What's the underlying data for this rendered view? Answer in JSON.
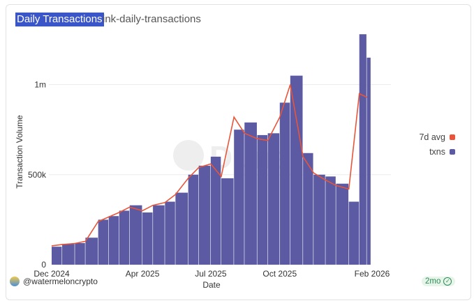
{
  "header": {
    "title": "Daily Transactions",
    "subtitle": "ink-daily-transactions"
  },
  "footer": {
    "author": "@watermeloncrypto",
    "age": "2mo"
  },
  "colors": {
    "txns": "#5b5aa3",
    "avg": "#e8553a",
    "title_bg": "#3a55c8"
  },
  "chart_data": {
    "type": "bar",
    "title": "Daily Transactions",
    "xlabel": "Date",
    "ylabel": "Transaction Volume",
    "ylim": [
      0,
      1300000
    ],
    "yticks": [
      {
        "value": 0,
        "label": "0"
      },
      {
        "value": 500000,
        "label": "500k"
      },
      {
        "value": 1000000,
        "label": "1m"
      }
    ],
    "xticks": [
      {
        "date": "2024-12-01",
        "label": "Dec 2024"
      },
      {
        "date": "2025-04-01",
        "label": "Apr 2025"
      },
      {
        "date": "2025-07-01",
        "label": "Jul 2025"
      },
      {
        "date": "2025-10-01",
        "label": "Oct 2025"
      },
      {
        "date": "2026-02-01",
        "label": "Feb 2026"
      }
    ],
    "x_range": [
      "2024-12-01",
      "2026-02-01"
    ],
    "legend_position": "right",
    "series": [
      {
        "name": "txns",
        "kind": "bar",
        "points": [
          [
            "2024-12-01",
            100000
          ],
          [
            "2024-12-15",
            115000
          ],
          [
            "2025-01-01",
            120000
          ],
          [
            "2025-01-15",
            150000
          ],
          [
            "2025-02-01",
            250000
          ],
          [
            "2025-02-15",
            270000
          ],
          [
            "2025-03-01",
            300000
          ],
          [
            "2025-03-15",
            330000
          ],
          [
            "2025-04-01",
            290000
          ],
          [
            "2025-04-15",
            330000
          ],
          [
            "2025-05-01",
            350000
          ],
          [
            "2025-05-15",
            400000
          ],
          [
            "2025-06-01",
            500000
          ],
          [
            "2025-06-15",
            550000
          ],
          [
            "2025-07-01",
            600000
          ],
          [
            "2025-07-15",
            480000
          ],
          [
            "2025-08-01",
            750000
          ],
          [
            "2025-08-15",
            790000
          ],
          [
            "2025-09-01",
            720000
          ],
          [
            "2025-09-15",
            730000
          ],
          [
            "2025-10-01",
            900000
          ],
          [
            "2025-10-15",
            1050000
          ],
          [
            "2025-11-01",
            620000
          ],
          [
            "2025-11-15",
            500000
          ],
          [
            "2025-12-01",
            490000
          ],
          [
            "2025-12-15",
            450000
          ],
          [
            "2026-01-01",
            350000
          ],
          [
            "2026-01-15",
            1280000
          ],
          [
            "2026-01-25",
            1150000
          ]
        ]
      },
      {
        "name": "7d avg",
        "kind": "line",
        "points": [
          [
            "2024-12-01",
            105000
          ],
          [
            "2024-12-15",
            112000
          ],
          [
            "2025-01-01",
            118000
          ],
          [
            "2025-01-15",
            130000
          ],
          [
            "2025-02-01",
            240000
          ],
          [
            "2025-02-15",
            265000
          ],
          [
            "2025-03-01",
            290000
          ],
          [
            "2025-03-15",
            320000
          ],
          [
            "2025-04-01",
            300000
          ],
          [
            "2025-04-15",
            330000
          ],
          [
            "2025-05-01",
            345000
          ],
          [
            "2025-05-15",
            390000
          ],
          [
            "2025-06-01",
            480000
          ],
          [
            "2025-06-15",
            540000
          ],
          [
            "2025-07-01",
            560000
          ],
          [
            "2025-07-15",
            490000
          ],
          [
            "2025-08-01",
            820000
          ],
          [
            "2025-08-15",
            730000
          ],
          [
            "2025-09-01",
            700000
          ],
          [
            "2025-09-15",
            690000
          ],
          [
            "2025-10-01",
            820000
          ],
          [
            "2025-10-15",
            1000000
          ],
          [
            "2025-11-01",
            600000
          ],
          [
            "2025-11-15",
            510000
          ],
          [
            "2025-12-01",
            470000
          ],
          [
            "2025-12-15",
            440000
          ],
          [
            "2026-01-01",
            420000
          ],
          [
            "2026-01-15",
            950000
          ],
          [
            "2026-01-25",
            930000
          ]
        ]
      }
    ]
  }
}
